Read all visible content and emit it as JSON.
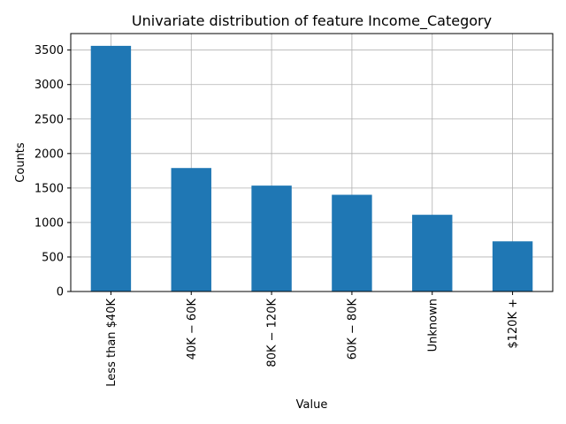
{
  "chart_data": {
    "type": "bar",
    "title": "Univariate distribution of feature Income_Category",
    "xlabel": "Value",
    "ylabel": "Counts",
    "categories": [
      "Less than $40K",
      "$40K - $60K",
      "$80K - $120K",
      "$60K - $80K",
      "Unknown",
      "$120K +"
    ],
    "category_display": [
      "Less than $40K",
      "40K − 60K",
      "80K − 120K",
      "60K − 80K",
      "Unknown",
      "$120K +"
    ],
    "values": [
      3561,
      1790,
      1535,
      1402,
      1112,
      727
    ],
    "ylim": [
      0,
      3739
    ],
    "yticks": [
      0,
      500,
      1000,
      1500,
      2000,
      2500,
      3000,
      3500
    ],
    "grid": true,
    "bar_color": "#1f77b4"
  }
}
